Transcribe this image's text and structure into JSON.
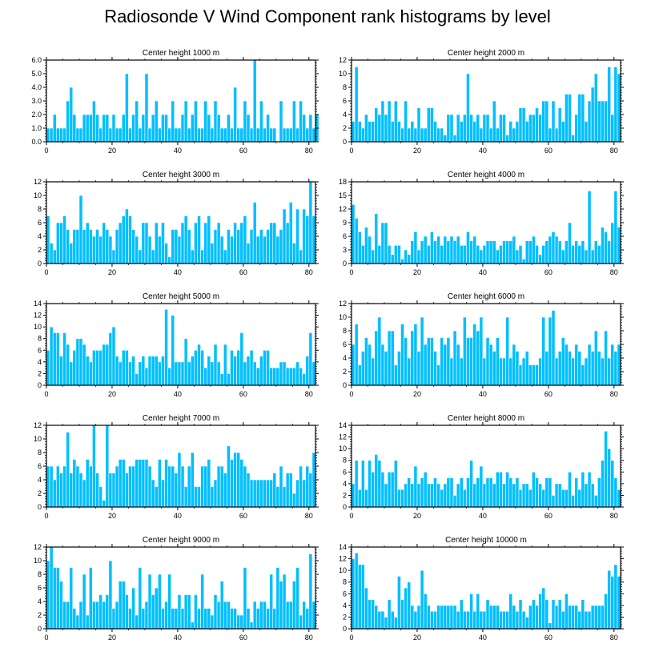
{
  "title": "Radiosonde V Wind Component rank histograms by level",
  "colors": {
    "bar": "#00BFFF",
    "bar_edge": "#FFFFFF",
    "axis": "#000000"
  },
  "chart_data": [
    {
      "type": "bar",
      "title": "Center height 1000 m",
      "xlim": [
        0,
        82
      ],
      "ylim": [
        0,
        6
      ],
      "yticks": [
        0,
        1,
        2,
        3,
        4,
        5,
        6
      ],
      "ytick_labels": [
        "0.0",
        "1.0",
        "2.0",
        "3.0",
        "4.0",
        "5.0",
        "6.0"
      ],
      "xticks": [
        0,
        20,
        40,
        60,
        80
      ],
      "xtick_labels": [
        "0",
        "20",
        "40",
        "60",
        "80"
      ],
      "values": [
        1,
        1,
        2,
        1,
        1,
        1,
        3,
        4,
        2,
        1,
        1,
        2,
        2,
        2,
        3,
        2,
        1,
        2,
        2,
        1,
        2,
        1,
        1,
        2,
        5,
        1,
        2,
        3,
        1,
        2,
        5,
        1,
        2,
        3,
        1,
        2,
        2,
        1,
        3,
        1,
        1,
        2,
        3,
        1,
        2,
        3,
        1,
        1,
        3,
        2,
        1,
        3,
        2,
        1,
        1,
        2,
        1,
        4,
        1,
        1,
        3,
        2,
        1,
        6,
        1,
        3,
        1,
        2,
        1,
        1,
        0,
        3,
        1,
        1,
        1,
        3,
        1,
        3,
        2,
        1,
        2,
        1,
        2
      ]
    },
    {
      "type": "bar",
      "title": "Center height 2000 m",
      "xlim": [
        0,
        82
      ],
      "ylim": [
        0,
        12
      ],
      "yticks": [
        0,
        2,
        4,
        6,
        8,
        10,
        12
      ],
      "ytick_labels": [
        "0",
        "2",
        "4",
        "6",
        "8",
        "10",
        "12"
      ],
      "xticks": [
        0,
        20,
        40,
        60,
        80
      ],
      "xtick_labels": [
        "0",
        "20",
        "40",
        "60",
        "80"
      ],
      "values": [
        3,
        11,
        3,
        2,
        4,
        3,
        3,
        5,
        4,
        6,
        4,
        6,
        3,
        6,
        3,
        2,
        6,
        2,
        3,
        2,
        5,
        2,
        2,
        5,
        5,
        3,
        2,
        2,
        1,
        4,
        4,
        1,
        4,
        3,
        4,
        10,
        4,
        3,
        4,
        2,
        4,
        4,
        2,
        6,
        2,
        4,
        4,
        1,
        3,
        2,
        3,
        5,
        5,
        3,
        4,
        4,
        5,
        4,
        6,
        6,
        2,
        6,
        2,
        5,
        3,
        7,
        7,
        1,
        4,
        7,
        7,
        3,
        6,
        8,
        10,
        6,
        6,
        6,
        11,
        4,
        11,
        10
      ]
    },
    {
      "type": "bar",
      "title": "Center height 3000 m",
      "xlim": [
        0,
        82
      ],
      "ylim": [
        0,
        12
      ],
      "yticks": [
        0,
        2,
        4,
        6,
        8,
        10,
        12
      ],
      "ytick_labels": [
        "0",
        "2",
        "4",
        "6",
        "8",
        "10",
        "12"
      ],
      "xticks": [
        0,
        20,
        40,
        60,
        80
      ],
      "xtick_labels": [
        "0",
        "20",
        "40",
        "60",
        "80"
      ],
      "values": [
        7,
        3,
        2,
        6,
        6,
        7,
        5,
        3,
        5,
        5,
        10,
        5,
        6,
        5,
        4,
        5,
        4,
        6,
        5,
        4,
        2,
        5,
        6,
        7,
        8,
        7,
        5,
        4,
        2,
        6,
        6,
        4,
        2,
        6,
        4,
        6,
        3,
        1,
        5,
        5,
        4,
        6,
        7,
        5,
        2,
        6,
        7,
        2,
        6,
        7,
        3,
        5,
        6,
        4,
        2,
        5,
        4,
        6,
        5,
        6,
        7,
        3,
        5,
        9,
        4,
        5,
        4,
        5,
        6,
        6,
        4,
        5,
        8,
        6,
        9,
        3,
        8,
        2,
        8,
        7,
        12,
        7
      ]
    },
    {
      "type": "bar",
      "title": "Center height 4000 m",
      "xlim": [
        0,
        82
      ],
      "ylim": [
        0,
        18
      ],
      "yticks": [
        0,
        3,
        6,
        9,
        12,
        15,
        18
      ],
      "ytick_labels": [
        "0",
        "3",
        "6",
        "9",
        "12",
        "15",
        "18"
      ],
      "xticks": [
        0,
        20,
        40,
        60,
        80
      ],
      "xtick_labels": [
        "0",
        "20",
        "40",
        "60",
        "80"
      ],
      "values": [
        13,
        10,
        7,
        4,
        8,
        6,
        3,
        11,
        4,
        9,
        9,
        4,
        2,
        4,
        4,
        1,
        3,
        2,
        5,
        7,
        3,
        5,
        6,
        4,
        7,
        5,
        6,
        4,
        6,
        5,
        6,
        5,
        6,
        4,
        4,
        7,
        5,
        6,
        4,
        3,
        4,
        5,
        5,
        5,
        3,
        4,
        5,
        5,
        5,
        6,
        3,
        4,
        1,
        5,
        5,
        6,
        4,
        2,
        4,
        5,
        6,
        7,
        6,
        5,
        3,
        5,
        9,
        4,
        5,
        4,
        5,
        3,
        16,
        3,
        5,
        4,
        8,
        7,
        5,
        9,
        16,
        8
      ]
    },
    {
      "type": "bar",
      "title": "Center height 5000 m",
      "xlim": [
        0,
        82
      ],
      "ylim": [
        0,
        14
      ],
      "yticks": [
        0,
        2,
        4,
        6,
        8,
        10,
        12,
        14
      ],
      "ytick_labels": [
        "0",
        "2",
        "4",
        "6",
        "8",
        "10",
        "12",
        "14"
      ],
      "xticks": [
        0,
        20,
        40,
        60,
        80
      ],
      "xtick_labels": [
        "0",
        "20",
        "40",
        "60",
        "80"
      ],
      "values": [
        6,
        10,
        9,
        9,
        5,
        9,
        7,
        4,
        6,
        8,
        8,
        7,
        5,
        4,
        6,
        6,
        6,
        7,
        7,
        9,
        10,
        5,
        4,
        6,
        6,
        4,
        5,
        2,
        4,
        5,
        3,
        5,
        5,
        5,
        4,
        5,
        13,
        3,
        12,
        4,
        4,
        4,
        8,
        4,
        5,
        6,
        7,
        6,
        3,
        5,
        4,
        7,
        4,
        2,
        7,
        2,
        6,
        5,
        6,
        9,
        4,
        5,
        6,
        4,
        3,
        5,
        6,
        6,
        3,
        3,
        3,
        4,
        4,
        3,
        3,
        3,
        4,
        3,
        2,
        5,
        9,
        4
      ]
    },
    {
      "type": "bar",
      "title": "Center height 6000 m",
      "xlim": [
        0,
        82
      ],
      "ylim": [
        0,
        12
      ],
      "yticks": [
        0,
        2,
        4,
        6,
        8,
        10,
        12
      ],
      "ytick_labels": [
        "0",
        "2",
        "4",
        "6",
        "8",
        "10",
        "12"
      ],
      "xticks": [
        0,
        20,
        40,
        60,
        80
      ],
      "xtick_labels": [
        "0",
        "20",
        "40",
        "60",
        "80"
      ],
      "values": [
        6,
        9,
        3,
        5,
        7,
        6,
        4,
        8,
        10,
        6,
        5,
        8,
        8,
        3,
        5,
        9,
        7,
        4,
        8,
        9,
        5,
        10,
        6,
        7,
        7,
        5,
        3,
        7,
        6,
        7,
        4,
        8,
        6,
        4,
        10,
        7,
        7,
        9,
        8,
        10,
        4,
        7,
        6,
        5,
        7,
        4,
        4,
        10,
        4,
        6,
        5,
        3,
        4,
        5,
        3,
        3,
        3,
        4,
        10,
        5,
        10,
        11,
        4,
        5,
        7,
        6,
        5,
        4,
        6,
        5,
        3,
        4,
        6,
        5,
        8,
        5,
        4,
        8,
        4,
        6,
        5,
        6
      ]
    },
    {
      "type": "bar",
      "title": "Center height 7000 m",
      "xlim": [
        0,
        82
      ],
      "ylim": [
        0,
        12
      ],
      "yticks": [
        0,
        2,
        4,
        6,
        8,
        10,
        12
      ],
      "ytick_labels": [
        "0",
        "2",
        "4",
        "6",
        "8",
        "10",
        "12"
      ],
      "xticks": [
        0,
        20,
        40,
        60,
        80
      ],
      "xtick_labels": [
        "0",
        "20",
        "40",
        "60",
        "80"
      ],
      "values": [
        6,
        6,
        4,
        6,
        5,
        6,
        11,
        5,
        7,
        6,
        5,
        4,
        7,
        6,
        12,
        5,
        3,
        1,
        12,
        5,
        5,
        6,
        7,
        7,
        5,
        6,
        6,
        7,
        7,
        7,
        7,
        6,
        4,
        3,
        7,
        4,
        7,
        6,
        6,
        5,
        8,
        6,
        3,
        6,
        8,
        3,
        3,
        6,
        6,
        7,
        3,
        4,
        6,
        6,
        5,
        9,
        7,
        8,
        8,
        7,
        6,
        5,
        4,
        4,
        4,
        4,
        4,
        4,
        4,
        5,
        3,
        6,
        3,
        5,
        5,
        2,
        4,
        6,
        4,
        6,
        5,
        8
      ]
    },
    {
      "type": "bar",
      "title": "Center height 8000 m",
      "xlim": [
        0,
        82
      ],
      "ylim": [
        0,
        14
      ],
      "yticks": [
        0,
        2,
        4,
        6,
        8,
        10,
        12,
        14
      ],
      "ytick_labels": [
        "0",
        "2",
        "4",
        "6",
        "8",
        "10",
        "12",
        "14"
      ],
      "xticks": [
        0,
        20,
        40,
        60,
        80
      ],
      "xtick_labels": [
        "0",
        "20",
        "40",
        "60",
        "80"
      ],
      "values": [
        4,
        8,
        3,
        8,
        3,
        8,
        6,
        9,
        8,
        6,
        4,
        6,
        6,
        8,
        3,
        3,
        4,
        5,
        4,
        7,
        4,
        5,
        6,
        4,
        4,
        5,
        4,
        3,
        4,
        5,
        5,
        2,
        4,
        5,
        3,
        5,
        8,
        4,
        5,
        7,
        4,
        5,
        5,
        4,
        6,
        6,
        4,
        6,
        5,
        4,
        5,
        3,
        4,
        4,
        3,
        6,
        5,
        4,
        3,
        5,
        5,
        2,
        4,
        4,
        3,
        3,
        6,
        2,
        5,
        3,
        6,
        4,
        6,
        4,
        2,
        5,
        8,
        13,
        10,
        8,
        5,
        3
      ]
    },
    {
      "type": "bar",
      "title": "Center height 9000 m",
      "xlim": [
        0,
        82
      ],
      "ylim": [
        0,
        12
      ],
      "yticks": [
        0,
        2,
        4,
        6,
        8,
        10,
        12
      ],
      "ytick_labels": [
        "0",
        "2",
        "4",
        "6",
        "8",
        "10",
        "12"
      ],
      "xticks": [
        0,
        20,
        40,
        60,
        80
      ],
      "xtick_labels": [
        "0",
        "20",
        "40",
        "60",
        "80"
      ],
      "values": [
        10,
        12,
        9,
        9,
        7,
        4,
        4,
        9,
        3,
        2,
        4,
        8,
        2,
        9,
        4,
        4,
        5,
        4,
        5,
        10,
        3,
        4,
        7,
        7,
        5,
        3,
        6,
        2,
        9,
        3,
        4,
        8,
        5,
        6,
        8,
        3,
        4,
        8,
        3,
        3,
        5,
        3,
        5,
        5,
        1,
        5,
        3,
        8,
        3,
        3,
        2,
        5,
        4,
        7,
        4,
        4,
        3,
        3,
        2,
        2,
        9,
        3,
        1,
        4,
        3,
        4,
        4,
        3,
        8,
        3,
        9,
        7,
        8,
        4,
        4,
        7,
        9,
        2,
        4,
        3,
        11,
        4
      ]
    },
    {
      "type": "bar",
      "title": "Center height 10000 m",
      "xlim": [
        0,
        82
      ],
      "ylim": [
        0,
        14
      ],
      "yticks": [
        0,
        2,
        4,
        6,
        8,
        10,
        12,
        14
      ],
      "ytick_labels": [
        "0",
        "2",
        "4",
        "6",
        "8",
        "10",
        "12",
        "14"
      ],
      "xticks": [
        0,
        20,
        40,
        60,
        80
      ],
      "xtick_labels": [
        "0",
        "20",
        "40",
        "60",
        "80"
      ],
      "values": [
        12,
        13,
        11,
        11,
        7,
        5,
        5,
        4,
        3,
        3,
        2,
        5,
        3,
        2,
        9,
        5,
        7,
        8,
        4,
        3,
        4,
        10,
        6,
        4,
        3,
        3,
        4,
        4,
        4,
        4,
        4,
        4,
        3,
        5,
        3,
        3,
        6,
        3,
        6,
        3,
        3,
        5,
        4,
        4,
        4,
        3,
        3,
        3,
        6,
        4,
        3,
        5,
        3,
        2,
        4,
        5,
        4,
        6,
        7,
        5,
        1,
        5,
        4,
        5,
        3,
        6,
        4,
        4,
        4,
        3,
        5,
        3,
        3,
        4,
        4,
        4,
        4,
        6,
        10,
        9,
        11,
        9
      ]
    }
  ]
}
